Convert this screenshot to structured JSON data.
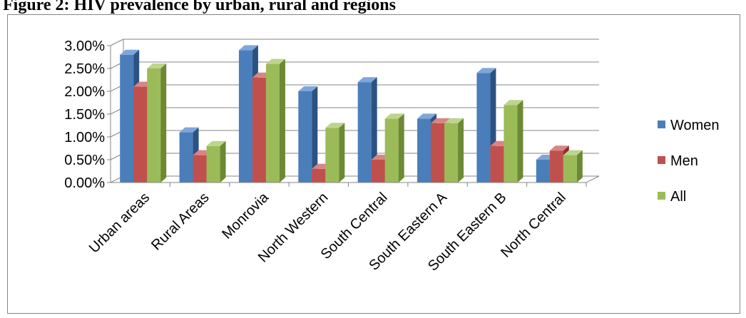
{
  "caption": "Figure 2: HIV prevalence by urban, rural and regions",
  "chart_data": {
    "type": "bar",
    "style": "3d-clustered-column",
    "categories": [
      "Urban areas",
      "Rural Areas",
      "Monrovia",
      "North Western",
      "South Central",
      "South Eastern A",
      "South Eastern B",
      "North Central"
    ],
    "series": [
      {
        "name": "Women",
        "values": [
          2.8,
          1.1,
          2.9,
          2.0,
          2.2,
          1.4,
          2.4,
          0.5
        ]
      },
      {
        "name": "Men",
        "values": [
          2.1,
          0.6,
          2.3,
          0.3,
          0.5,
          1.3,
          0.8,
          0.7
        ]
      },
      {
        "name": "All",
        "values": [
          2.5,
          0.8,
          2.6,
          1.2,
          1.4,
          1.3,
          1.7,
          0.6
        ]
      }
    ],
    "y_ticks": [
      "0.00%",
      "0.50%",
      "1.00%",
      "1.50%",
      "2.00%",
      "2.50%",
      "3.00%"
    ],
    "ylim": [
      0,
      3.0
    ],
    "unit": "%",
    "grid": true,
    "legend": "right",
    "colors": {
      "Women": {
        "front": "#4a7ebb",
        "side": "#2c5282",
        "top": "#7fa6d8"
      },
      "Men": {
        "front": "#c0504d",
        "side": "#8b2f2c",
        "top": "#d98584"
      },
      "All": {
        "front": "#9bbb59",
        "side": "#6b8a33",
        "top": "#bcd48d"
      }
    }
  }
}
